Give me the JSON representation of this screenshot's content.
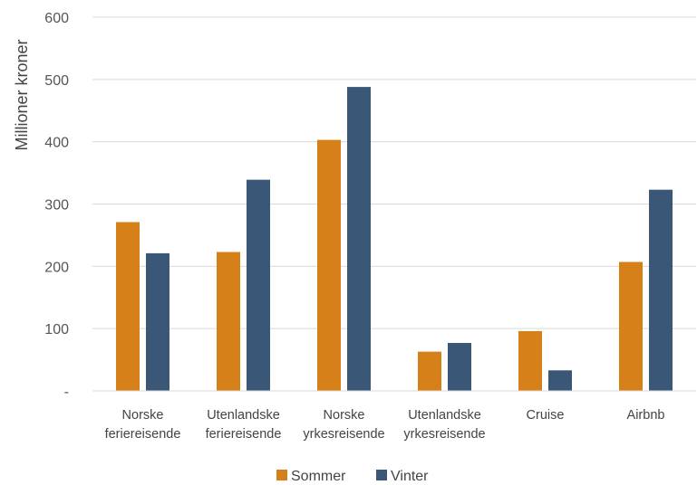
{
  "chart_data": {
    "type": "bar",
    "categories": [
      [
        "Norske",
        "feriereisende"
      ],
      [
        "Utenlandske",
        "feriereisende"
      ],
      [
        "Norske",
        "yrkesreisende"
      ],
      [
        "Utenlandske",
        "yrkesreisende"
      ],
      [
        "Cruise"
      ],
      [
        "Airbnb"
      ]
    ],
    "series": [
      {
        "name": "Sommer",
        "color": "#D6801A",
        "values": [
          271,
          223,
          403,
          63,
          96,
          207
        ]
      },
      {
        "name": "Vinter",
        "color": "#3A5777",
        "values": [
          221,
          339,
          488,
          77,
          33,
          323
        ]
      }
    ],
    "ylabel": "Millioner kroner",
    "ylim": [
      0,
      600
    ],
    "yticks": [
      {
        "value": 0,
        "label": "-"
      },
      {
        "value": 100,
        "label": "100"
      },
      {
        "value": 200,
        "label": "200"
      },
      {
        "value": 300,
        "label": "300"
      },
      {
        "value": 400,
        "label": "400"
      },
      {
        "value": 500,
        "label": "500"
      },
      {
        "value": 600,
        "label": "600"
      }
    ],
    "grid": true,
    "legend": "bottom-center"
  }
}
